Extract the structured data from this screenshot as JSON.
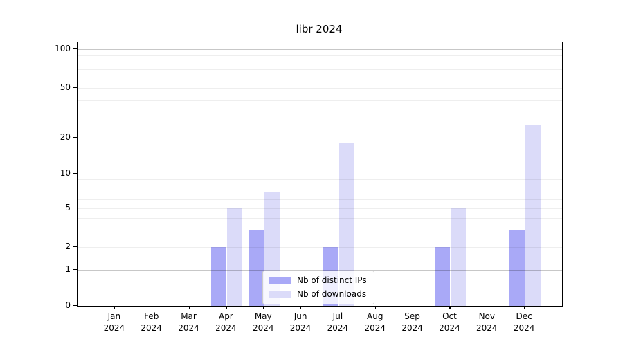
{
  "chart_data": {
    "type": "bar",
    "title": "libr 2024",
    "categories": [
      "Jan",
      "Feb",
      "Mar",
      "Apr",
      "May",
      "Jun",
      "Jul",
      "Aug",
      "Sep",
      "Oct",
      "Nov",
      "Dec"
    ],
    "year": "2024",
    "series": [
      {
        "name": "Nb of distinct IPs",
        "color": "#a9a9f7",
        "values": [
          0,
          0,
          0,
          2,
          3,
          0,
          2,
          0,
          0,
          2,
          0,
          3
        ]
      },
      {
        "name": "Nb of downloads",
        "color": "#dbdbf9",
        "values": [
          0,
          0,
          0,
          5,
          7,
          0,
          18,
          0,
          0,
          5,
          0,
          25
        ]
      }
    ],
    "y_axis": {
      "scale": "log-like",
      "tick_labels": [
        "0",
        "1",
        "2",
        "5",
        "10",
        "20",
        "50",
        "100"
      ],
      "tick_values": [
        0,
        1,
        2,
        5,
        10,
        20,
        50,
        100
      ],
      "major_gridlines": [
        1,
        10,
        100
      ],
      "minor_gridlines": [
        2,
        3,
        4,
        5,
        6,
        7,
        8,
        9,
        20,
        30,
        40,
        50,
        60,
        70,
        80,
        90
      ],
      "ylim": [
        0,
        110
      ]
    },
    "x_axis": {
      "label_line2": "2024"
    },
    "legend": {
      "position": "lower center",
      "entries": [
        "Nb of distinct IPs",
        "Nb of downloads"
      ]
    },
    "grid": true,
    "colors": {
      "bar_ips": "#a9a9f7",
      "bar_downloads": "#dbdbf9",
      "spine": "#000000"
    }
  }
}
